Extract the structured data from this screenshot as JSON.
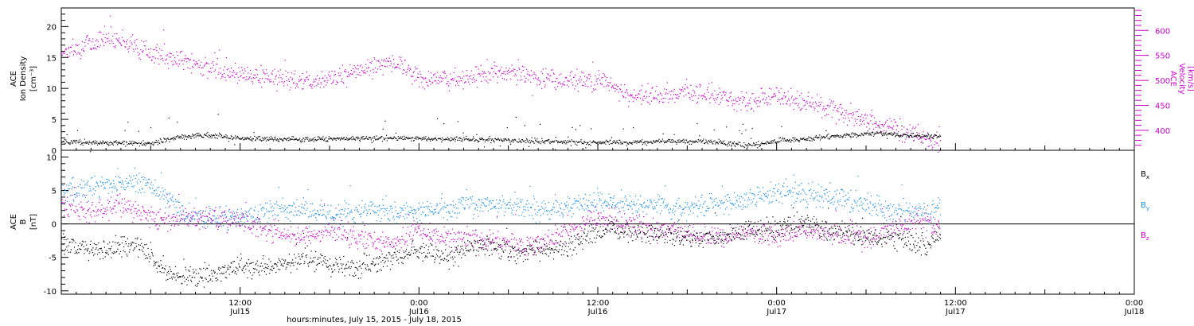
{
  "colors": {
    "axis": "#000000",
    "magenta": "#cc00cc",
    "blue": "#1a8fe8",
    "black": "#000000"
  },
  "chart_data": [
    {
      "type": "scatter",
      "panel": "top",
      "ylabel": [
        "ACE",
        "Ion Density",
        "[cm⁻³]"
      ],
      "ylabel2": [
        "ACE",
        "Velocity",
        "[km/s]"
      ],
      "ylim": [
        0,
        23
      ],
      "yticks": [
        0,
        5,
        10,
        15,
        20
      ],
      "ylim2": [
        360,
        645
      ],
      "yticks2": [
        400,
        450,
        500,
        550,
        600
      ],
      "xlim_hours": [
        0,
        72
      ],
      "data_end_hours": 59,
      "series": [
        {
          "axis": "right",
          "color": "magenta",
          "keypoints": [
            [
              0,
              560
            ],
            [
              1,
              565
            ],
            [
              2,
              575
            ],
            [
              3,
              590
            ],
            [
              4,
              580
            ],
            [
              6,
              555
            ],
            [
              8,
              540
            ],
            [
              10,
              525
            ],
            [
              12,
              515
            ],
            [
              14,
              505
            ],
            [
              16,
              500
            ],
            [
              18,
              502
            ],
            [
              20,
              520
            ],
            [
              22,
              535
            ],
            [
              23,
              530
            ],
            [
              24,
              505
            ],
            [
              26,
              500
            ],
            [
              28,
              510
            ],
            [
              30,
              520
            ],
            [
              32,
              505
            ],
            [
              34,
              498
            ],
            [
              36,
              505
            ],
            [
              38,
              470
            ],
            [
              40,
              470
            ],
            [
              42,
              478
            ],
            [
              44,
              470
            ],
            [
              46,
              460
            ],
            [
              48,
              470
            ],
            [
              50,
              455
            ],
            [
              52,
              440
            ],
            [
              54,
              420
            ],
            [
              56,
              405
            ],
            [
              58,
              385
            ],
            [
              59,
              375
            ]
          ]
        },
        {
          "axis": "left",
          "color": "black",
          "keypoints": [
            [
              0,
              1.5
            ],
            [
              2,
              1.3
            ],
            [
              4,
              1.2
            ],
            [
              6,
              1.2
            ],
            [
              8,
              2.2
            ],
            [
              10,
              2.5
            ],
            [
              12,
              2.0
            ],
            [
              16,
              1.8
            ],
            [
              20,
              2.0
            ],
            [
              24,
              2.0
            ],
            [
              30,
              1.7
            ],
            [
              34,
              1.4
            ],
            [
              38,
              1.3
            ],
            [
              40,
              1.5
            ],
            [
              44,
              1.4
            ],
            [
              46,
              0.8
            ],
            [
              48,
              1.6
            ],
            [
              50,
              1.9
            ],
            [
              52,
              2.4
            ],
            [
              55,
              2.8
            ],
            [
              57,
              2.4
            ],
            [
              59,
              2.3
            ]
          ]
        }
      ]
    },
    {
      "type": "scatter",
      "panel": "bottom",
      "ylabel": [
        "ACE",
        "B",
        "[nT]"
      ],
      "ylim": [
        -10.5,
        11
      ],
      "yticks": [
        -10,
        -5,
        0,
        5,
        10
      ],
      "xlim_hours": [
        0,
        72
      ],
      "data_end_hours": 59,
      "xticks": [
        {
          "hour": 12,
          "time": "12:00",
          "date": "Jul15"
        },
        {
          "hour": 24,
          "time": "0:00",
          "date": "Jul16"
        },
        {
          "hour": 36,
          "time": "12:00",
          "date": "Jul16"
        },
        {
          "hour": 48,
          "time": "0:00",
          "date": "Jul17"
        },
        {
          "hour": 60,
          "time": "12:00",
          "date": "Jul17"
        },
        {
          "hour": 72,
          "time": "0:00",
          "date": "Jul18"
        }
      ],
      "xlabel": "hours:minutes, July 15, 2015 - July 18, 2015",
      "legend": [
        {
          "label": "B",
          "sub": "x",
          "color": "black"
        },
        {
          "label": "B",
          "sub": "y",
          "color": "blue"
        },
        {
          "label": "B",
          "sub": "z",
          "color": "magenta"
        }
      ],
      "series": [
        {
          "name": "Bx",
          "color": "black",
          "keypoints": [
            [
              0,
              -3
            ],
            [
              3,
              -4
            ],
            [
              5,
              -3
            ],
            [
              6,
              -5
            ],
            [
              7,
              -7
            ],
            [
              8,
              -8
            ],
            [
              10,
              -7.5
            ],
            [
              12,
              -6.5
            ],
            [
              14,
              -6.5
            ],
            [
              16,
              -5
            ],
            [
              18,
              -6
            ],
            [
              20,
              -6.5
            ],
            [
              22,
              -5
            ],
            [
              24,
              -4
            ],
            [
              26,
              -5
            ],
            [
              28,
              -3
            ],
            [
              30,
              -4
            ],
            [
              32,
              -4
            ],
            [
              34,
              -3.5
            ],
            [
              36,
              -1
            ],
            [
              38,
              -1
            ],
            [
              40,
              -1.5
            ],
            [
              42,
              -2
            ],
            [
              44,
              -2
            ],
            [
              46,
              -1
            ],
            [
              48,
              -1
            ],
            [
              50,
              0
            ],
            [
              52,
              -1
            ],
            [
              54,
              -2
            ],
            [
              56,
              -2
            ],
            [
              58,
              -3
            ],
            [
              59,
              -1.5
            ]
          ]
        },
        {
          "name": "By",
          "color": "blue",
          "keypoints": [
            [
              0,
              5
            ],
            [
              2,
              5.5
            ],
            [
              3,
              6
            ],
            [
              4,
              6.5
            ],
            [
              6,
              6
            ],
            [
              8,
              1.5
            ],
            [
              10,
              1
            ],
            [
              12,
              1
            ],
            [
              14,
              2
            ],
            [
              16,
              2
            ],
            [
              18,
              1.5
            ],
            [
              20,
              2
            ],
            [
              22,
              2
            ],
            [
              24,
              2
            ],
            [
              26,
              2.5
            ],
            [
              28,
              3
            ],
            [
              30,
              3
            ],
            [
              32,
              2
            ],
            [
              34,
              2.5
            ],
            [
              36,
              3.5
            ],
            [
              38,
              3
            ],
            [
              40,
              3
            ],
            [
              42,
              2
            ],
            [
              44,
              3
            ],
            [
              46,
              3.5
            ],
            [
              48,
              4.5
            ],
            [
              50,
              4.5
            ],
            [
              52,
              4
            ],
            [
              54,
              3
            ],
            [
              56,
              2
            ],
            [
              58,
              2
            ],
            [
              59,
              2.5
            ]
          ]
        },
        {
          "name": "Bz",
          "color": "magenta",
          "keypoints": [
            [
              0,
              3
            ],
            [
              2,
              2
            ],
            [
              4,
              3
            ],
            [
              5,
              2
            ],
            [
              6,
              1
            ],
            [
              8,
              0.8
            ],
            [
              10,
              1
            ],
            [
              12,
              0.5
            ],
            [
              14,
              -1
            ],
            [
              16,
              -2
            ],
            [
              18,
              -1
            ],
            [
              20,
              -2
            ],
            [
              22,
              -3
            ],
            [
              24,
              -1
            ],
            [
              26,
              -2
            ],
            [
              28,
              -2
            ],
            [
              30,
              -3
            ],
            [
              32,
              -3
            ],
            [
              34,
              -1
            ],
            [
              36,
              1
            ],
            [
              38,
              0
            ],
            [
              40,
              -1
            ],
            [
              42,
              -1
            ],
            [
              44,
              -2
            ],
            [
              46,
              -1
            ],
            [
              48,
              -2
            ],
            [
              50,
              -1
            ],
            [
              52,
              -2
            ],
            [
              54,
              -2
            ],
            [
              56,
              -0.5
            ],
            [
              58,
              0.5
            ],
            [
              59,
              -1
            ]
          ]
        }
      ]
    }
  ]
}
